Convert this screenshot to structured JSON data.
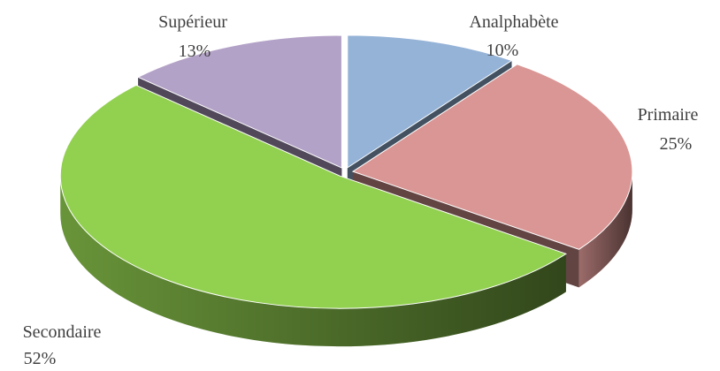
{
  "chart_data": {
    "type": "pie3d",
    "categories": [
      "Analphabète",
      "Primaire",
      "Secondaire",
      "Supérieur"
    ],
    "values": [
      10,
      25,
      52,
      13
    ],
    "value_labels": [
      "10%",
      "25%",
      "52%",
      "13%"
    ],
    "colors": [
      "#95b3d7",
      "#d99694",
      "#92d050",
      "#b3a2c7"
    ]
  }
}
